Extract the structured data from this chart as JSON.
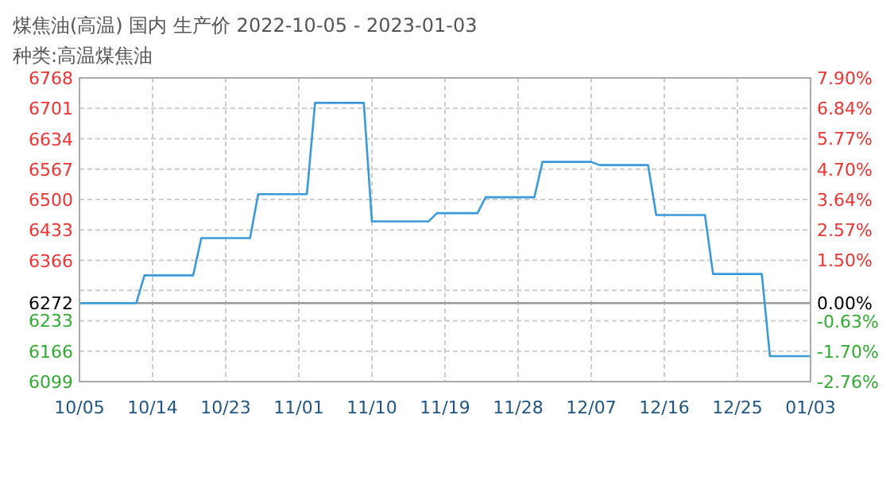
{
  "chart_data": {
    "type": "line",
    "title": "煤焦油(高温) 国内 生产价 2022-10-05 - 2023-01-03",
    "subtitle": "种类:高温煤焦油",
    "x": [
      "2022-10-05",
      "2022-10-12",
      "2022-10-13",
      "2022-10-19",
      "2022-10-20",
      "2022-10-26",
      "2022-10-27",
      "2022-11-02",
      "2022-11-03",
      "2022-11-09",
      "2022-11-10",
      "2022-11-17",
      "2022-11-18",
      "2022-11-23",
      "2022-11-24",
      "2022-11-30",
      "2022-12-01",
      "2022-12-07",
      "2022-12-08",
      "2022-12-14",
      "2022-12-15",
      "2022-12-21",
      "2022-12-22",
      "2022-12-28",
      "2022-12-29",
      "2023-01-03"
    ],
    "series": [
      {
        "color": "#3a9ad9",
        "values": [
          6272,
          6272,
          6333,
          6333,
          6415,
          6415,
          6512,
          6512,
          6713,
          6713,
          6452,
          6452,
          6470,
          6470,
          6505,
          6505,
          6583,
          6583,
          6576,
          6576,
          6466,
          6466,
          6336,
          6336,
          6155,
          6155
        ]
      }
    ],
    "xlim": [
      "2022-10-05",
      "2023-01-03"
    ],
    "xticks": [
      {
        "value": "2022-10-05",
        "label": "10/05"
      },
      {
        "value": "2022-10-14",
        "label": "10/14"
      },
      {
        "value": "2022-10-23",
        "label": "10/23"
      },
      {
        "value": "2022-11-01",
        "label": "11/01"
      },
      {
        "value": "2022-11-10",
        "label": "11/10"
      },
      {
        "value": "2022-11-19",
        "label": "11/19"
      },
      {
        "value": "2022-11-28",
        "label": "11/28"
      },
      {
        "value": "2022-12-07",
        "label": "12/07"
      },
      {
        "value": "2022-12-16",
        "label": "12/16"
      },
      {
        "value": "2022-12-25",
        "label": "12/25"
      },
      {
        "value": "2023-01-03",
        "label": "01/03"
      }
    ],
    "ylim": [
      6099,
      6768
    ],
    "yticks": [
      6099,
      6166,
      6233,
      {
        "value": 6300,
        "label": null
      },
      6366,
      6433,
      6500,
      6567,
      6634,
      6701,
      6768
    ],
    "y2lim": [
      -2.76,
      7.9
    ],
    "y2ticks": [
      {
        "value": -2.76,
        "label": "-2.76%"
      },
      {
        "value": -1.7,
        "label": "-1.70%"
      },
      {
        "value": -0.63,
        "label": "-0.63%"
      },
      {
        "value": 0,
        "label": "0.00%"
      },
      {
        "value": 1.5,
        "label": "1.50%"
      },
      {
        "value": 2.57,
        "label": "2.57%"
      },
      {
        "value": 3.64,
        "label": "3.64%"
      },
      {
        "value": 4.7,
        "label": "4.70%"
      },
      {
        "value": 5.77,
        "label": "5.77%"
      },
      {
        "value": 6.84,
        "label": "6.84%"
      },
      {
        "value": 7.9,
        "label": "7.90%"
      }
    ],
    "ref_lines": [
      {
        "axis": "y",
        "value": 6272,
        "label": "6272",
        "color": "#999999"
      }
    ],
    "grid": true,
    "marker": "none",
    "line_style": "solid"
  }
}
